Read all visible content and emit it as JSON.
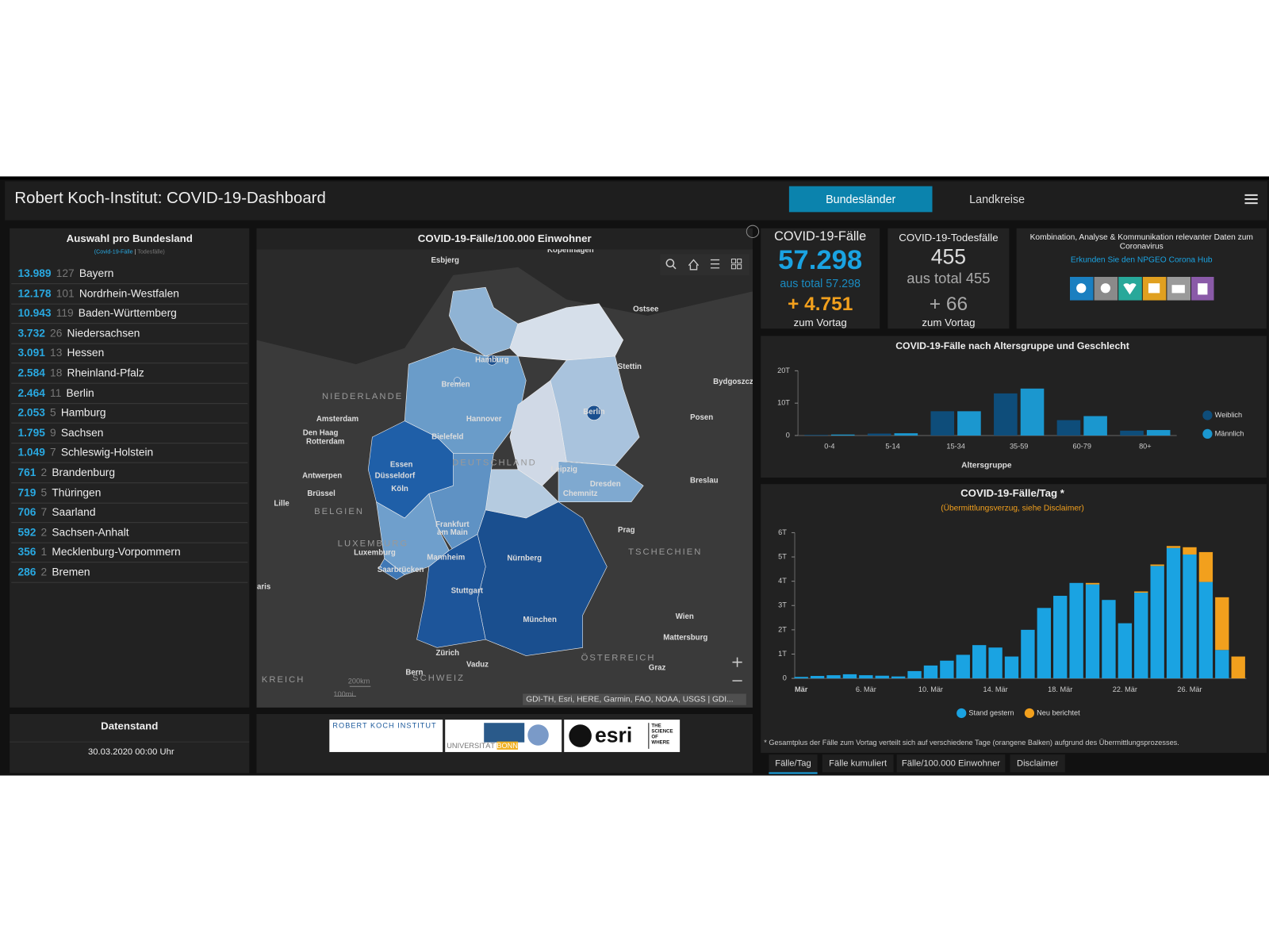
{
  "header": {
    "title": "Robert Koch-Institut: COVID-19-Dashboard",
    "tabs": [
      "Bundesländer",
      "Landkreise"
    ]
  },
  "states": {
    "title": "Auswahl pro Bundesland",
    "legend": [
      "(Covid-19-Fälle",
      " | ",
      "Todesfälle)"
    ],
    "rows": [
      [
        "13.989",
        "127",
        "Bayern"
      ],
      [
        "12.178",
        "101",
        "Nordrhein-Westfalen"
      ],
      [
        "10.943",
        "119",
        "Baden-Württemberg"
      ],
      [
        "3.732",
        "26",
        "Niedersachsen"
      ],
      [
        "3.091",
        "13",
        "Hessen"
      ],
      [
        "2.584",
        "18",
        "Rheinland-Pfalz"
      ],
      [
        "2.464",
        "11",
        "Berlin"
      ],
      [
        "2.053",
        "5",
        "Hamburg"
      ],
      [
        "1.795",
        "9",
        "Sachsen"
      ],
      [
        "1.049",
        "7",
        "Schleswig-Holstein"
      ],
      [
        "761",
        "2",
        "Brandenburg"
      ],
      [
        "719",
        "5",
        "Thüringen"
      ],
      [
        "706",
        "7",
        "Saarland"
      ],
      [
        "592",
        "2",
        "Sachsen-Anhalt"
      ],
      [
        "356",
        "1",
        "Mecklenburg-Vorpommern"
      ],
      [
        "286",
        "2",
        "Bremen"
      ]
    ]
  },
  "map": {
    "title": "COVID-19-Fälle/100.000 Einwohner",
    "labels": [
      "Esbjerg",
      "Kopenhagen",
      "Ostsee",
      "Hamburg",
      "Stettin",
      "Bydgoszcz",
      "Bremen",
      "NIEDERLANDE",
      "Amsterdam",
      "Hannover",
      "Berlin",
      "Posen",
      "Bielefeld",
      "Den Haag",
      "Rotterdam",
      "DEUTSCHLAND",
      "Essen",
      "Düsseldorf",
      "Leipzig",
      "Antwerpen",
      "Breslau",
      "Dresden",
      "Köln",
      "Brüssel",
      "Chemnitz",
      "Lille",
      "BELGIEN",
      "Frankfurt",
      "am Main",
      "Prag",
      "LUXEMBURG",
      "Luxemburg",
      "TSCHECHIEN",
      "Mannheim",
      "Nürnberg",
      "Saarbrücken",
      "aris",
      "Stuttgart",
      "Wien",
      "München",
      "Mattersburg",
      "Zürich",
      "Vaduz",
      "ÖSTERREICH",
      "Graz",
      "Bern",
      "SCHWEIZ",
      "KREICH"
    ],
    "scale": [
      "200km",
      "100mi"
    ],
    "attribution": "GDI-TH, Esri, HERE, Garmin, FAO, NOAA, USGS | GDI..."
  },
  "cases": {
    "title": "COVID-19-Fälle",
    "value": "57.298",
    "total": "aus total 57.298",
    "delta": "+ 4.751",
    "delta_label": "zum Vortag"
  },
  "deaths": {
    "title": "COVID-19-Todesfälle",
    "value": "455",
    "total": "aus total 455",
    "delta": "+ 66",
    "delta_label": "zum Vortag"
  },
  "hub": {
    "text": "Kombination, Analyse & Kommunikation relevanter Daten zum Coronavirus",
    "link": "Erkunden Sie den NPGEO Corona Hub"
  },
  "datenstand": {
    "title": "Datenstand",
    "value": "30.03.2020 00:00 Uhr"
  },
  "logos": [
    "ROBERT KOCH INSTITUT",
    "UNIVERSITÄT",
    "BONN",
    "esri",
    "THE SCIENCE OF WHERE"
  ],
  "chart_data": [
    {
      "type": "bar",
      "title": "COVID-19-Fälle nach Altersgruppe und Geschlecht",
      "x_label": "Altersgruppe",
      "categories": [
        "0-4",
        "5-14",
        "15-34",
        "35-59",
        "60-79",
        "80+"
      ],
      "series": [
        {
          "name": "Weiblich",
          "color": "#0e4d7a",
          "values": [
            200,
            600,
            7500,
            13000,
            4750,
            1500
          ]
        },
        {
          "name": "Männlich",
          "color": "#1b97cf",
          "values": [
            300,
            700,
            7500,
            14500,
            6000,
            1700
          ]
        }
      ],
      "ylim": [
        0,
        20000
      ],
      "yticks": [
        0,
        {
          "value": 10000,
          "label": "10T"
        },
        {
          "value": 20000,
          "label": "20T"
        }
      ],
      "legend": "right"
    },
    {
      "type": "stacked_bar",
      "title": "COVID-19-Fälle/Tag *",
      "subtitle": "(Übermittlungsverzug, siehe Disclaimer)",
      "categories": [
        "Mär",
        null,
        null,
        null,
        "6. Mär",
        null,
        null,
        null,
        "10. Mär",
        null,
        null,
        null,
        "14. Mär",
        null,
        null,
        null,
        "18. Mär",
        null,
        null,
        null,
        "22. Mär",
        null,
        null,
        null,
        "26. Mär",
        null,
        null,
        null
      ],
      "series": [
        {
          "name": "Stand gestern",
          "color": "#1aa3e2",
          "values": [
            60,
            100,
            130,
            170,
            130,
            110,
            80,
            300,
            530,
            730,
            970,
            1370,
            1270,
            900,
            2000,
            2900,
            3400,
            3930,
            3870,
            3230,
            2270,
            3530,
            4630,
            5370,
            5100,
            3970,
            1170,
            0
          ]
        },
        {
          "name": "Neu berichtet",
          "color": "#f2a01d",
          "values": [
            0,
            0,
            0,
            0,
            0,
            0,
            0,
            0,
            0,
            0,
            0,
            0,
            0,
            0,
            0,
            0,
            0,
            0,
            60,
            0,
            0,
            50,
            60,
            80,
            300,
            1230,
            2170,
            900
          ]
        }
      ],
      "ylim": [
        0,
        6000
      ],
      "yticks": [
        0,
        {
          "value": 1000,
          "label": "1T"
        },
        {
          "value": 2000,
          "label": "2T"
        },
        {
          "value": 3000,
          "label": "3T"
        },
        {
          "value": 4000,
          "label": "4T"
        },
        {
          "value": 5000,
          "label": "5T"
        },
        {
          "value": 6000,
          "label": "6T"
        }
      ],
      "legend": "bottom"
    }
  ],
  "daily_footnote": "* Gesamtplus der Fälle zum Vortag verteilt sich auf verschiedene Tage (orangene Balken) aufgrund des Übermittlungsprozesses.",
  "daily_tabs": [
    "Fälle/Tag",
    "Fälle kumuliert",
    "Fälle/100.000 Einwohner",
    "Disclaimer"
  ]
}
